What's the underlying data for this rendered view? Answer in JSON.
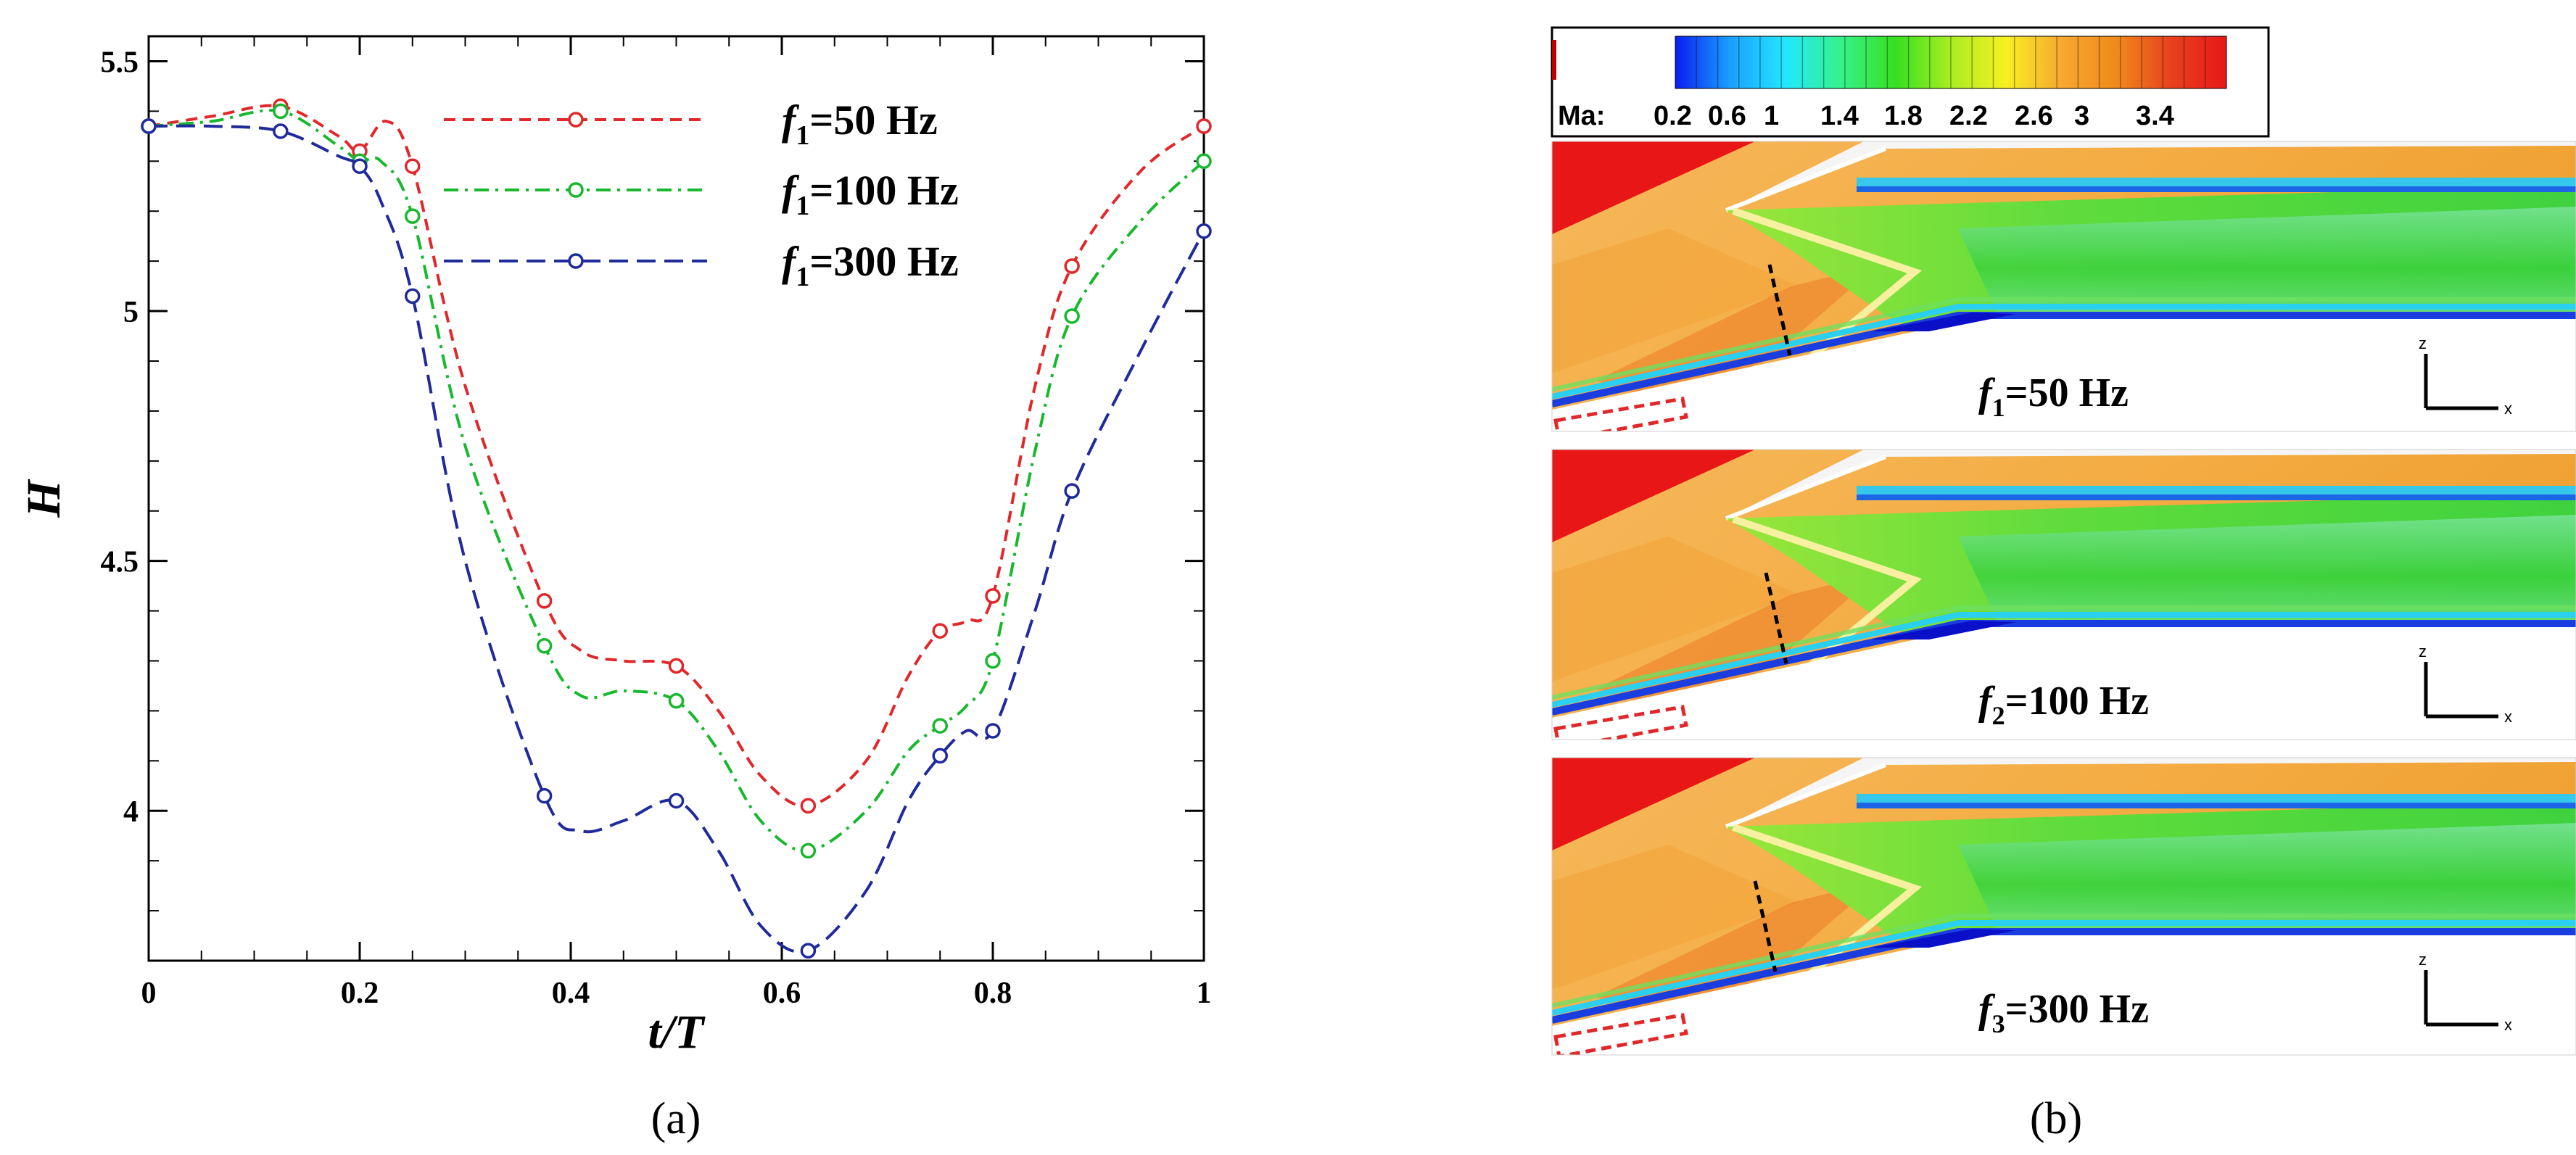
{
  "chart_data": [
    {
      "type": "line",
      "panel_label": "(a)",
      "xlabel": "t/T",
      "ylabel": "H",
      "xlim": [
        0,
        1
      ],
      "ylim": [
        3.7,
        5.55
      ],
      "xticks": [
        0,
        0.2,
        0.4,
        0.6,
        0.8,
        1
      ],
      "xtick_labels": [
        "0",
        "0.2",
        "0.4",
        "0.6",
        "0.8",
        "1"
      ],
      "yticks": [
        4,
        4.5,
        5,
        5.5
      ],
      "ytick_labels": [
        "4",
        "4.5",
        "5",
        "5.5"
      ],
      "grid": false,
      "legend_position": "top-right",
      "series": [
        {
          "name": "f1=50 Hz",
          "legend_main": "f",
          "legend_sub": "1",
          "legend_rest": "=50 Hz",
          "color": "#e0282b",
          "dash": "dashed",
          "markers": [
            [
              0,
              5.37
            ],
            [
              0.125,
              5.41
            ],
            [
              0.2,
              5.32
            ],
            [
              0.25,
              5.29
            ],
            [
              0.375,
              4.42
            ],
            [
              0.5,
              4.29
            ],
            [
              0.625,
              4.01
            ],
            [
              0.75,
              4.36
            ],
            [
              0.8,
              4.43
            ],
            [
              0.875,
              5.09
            ],
            [
              1,
              5.37
            ]
          ],
          "curve": [
            [
              0,
              5.37
            ],
            [
              0.06,
              5.39
            ],
            [
              0.125,
              5.41
            ],
            [
              0.18,
              5.35
            ],
            [
              0.2,
              5.32
            ],
            [
              0.225,
              5.38
            ],
            [
              0.25,
              5.29
            ],
            [
              0.3,
              4.85
            ],
            [
              0.375,
              4.42
            ],
            [
              0.41,
              4.32
            ],
            [
              0.45,
              4.3
            ],
            [
              0.5,
              4.29
            ],
            [
              0.54,
              4.2
            ],
            [
              0.58,
              4.07
            ],
            [
              0.625,
              4.01
            ],
            [
              0.68,
              4.1
            ],
            [
              0.72,
              4.27
            ],
            [
              0.75,
              4.36
            ],
            [
              0.775,
              4.38
            ],
            [
              0.8,
              4.43
            ],
            [
              0.84,
              4.85
            ],
            [
              0.875,
              5.09
            ],
            [
              0.94,
              5.28
            ],
            [
              1,
              5.37
            ]
          ]
        },
        {
          "name": "f1=100 Hz",
          "legend_main": "f",
          "legend_sub": "1",
          "legend_rest": "=100 Hz",
          "color": "#18b82e",
          "dash": "dashdot",
          "markers": [
            [
              0,
              5.37
            ],
            [
              0.125,
              5.4
            ],
            [
              0.2,
              5.3
            ],
            [
              0.25,
              5.19
            ],
            [
              0.375,
              4.33
            ],
            [
              0.5,
              4.22
            ],
            [
              0.625,
              3.92
            ],
            [
              0.75,
              4.17
            ],
            [
              0.8,
              4.3
            ],
            [
              0.875,
              4.99
            ],
            [
              1,
              5.3
            ]
          ],
          "curve": [
            [
              0,
              5.37
            ],
            [
              0.06,
              5.38
            ],
            [
              0.125,
              5.4
            ],
            [
              0.18,
              5.33
            ],
            [
              0.2,
              5.3
            ],
            [
              0.22,
              5.3
            ],
            [
              0.25,
              5.19
            ],
            [
              0.3,
              4.73
            ],
            [
              0.375,
              4.33
            ],
            [
              0.41,
              4.23
            ],
            [
              0.45,
              4.24
            ],
            [
              0.5,
              4.22
            ],
            [
              0.54,
              4.12
            ],
            [
              0.58,
              3.98
            ],
            [
              0.625,
              3.92
            ],
            [
              0.68,
              4.0
            ],
            [
              0.72,
              4.12
            ],
            [
              0.75,
              4.17
            ],
            [
              0.775,
              4.21
            ],
            [
              0.8,
              4.3
            ],
            [
              0.84,
              4.72
            ],
            [
              0.875,
              4.99
            ],
            [
              0.94,
              5.18
            ],
            [
              1,
              5.3
            ]
          ]
        },
        {
          "name": "f1=300 Hz",
          "legend_main": "f",
          "legend_sub": "1",
          "legend_rest": "=300 Hz",
          "color": "#1f2a9b",
          "dash": "longdash",
          "markers": [
            [
              0,
              5.37
            ],
            [
              0.125,
              5.36
            ],
            [
              0.2,
              5.29
            ],
            [
              0.25,
              5.03
            ],
            [
              0.375,
              4.03
            ],
            [
              0.5,
              4.02
            ],
            [
              0.625,
              3.72
            ],
            [
              0.75,
              4.11
            ],
            [
              0.8,
              4.16
            ],
            [
              0.875,
              4.64
            ],
            [
              1,
              5.16
            ]
          ],
          "curve": [
            [
              0,
              5.37
            ],
            [
              0.06,
              5.37
            ],
            [
              0.125,
              5.36
            ],
            [
              0.18,
              5.31
            ],
            [
              0.2,
              5.29
            ],
            [
              0.22,
              5.22
            ],
            [
              0.25,
              5.03
            ],
            [
              0.3,
              4.5
            ],
            [
              0.375,
              4.03
            ],
            [
              0.41,
              3.96
            ],
            [
              0.45,
              3.98
            ],
            [
              0.5,
              4.02
            ],
            [
              0.54,
              3.92
            ],
            [
              0.58,
              3.77
            ],
            [
              0.625,
              3.72
            ],
            [
              0.68,
              3.84
            ],
            [
              0.72,
              4.02
            ],
            [
              0.75,
              4.11
            ],
            [
              0.775,
              4.16
            ],
            [
              0.8,
              4.16
            ],
            [
              0.84,
              4.4
            ],
            [
              0.875,
              4.64
            ],
            [
              0.94,
              4.92
            ],
            [
              1,
              5.16
            ]
          ]
        }
      ]
    },
    {
      "type": "heatmap",
      "panel_label": "(b)",
      "colorbar": {
        "label": "Ma:",
        "ticks": [
          "0.2",
          "0.6",
          "1",
          "1.4",
          "1.8",
          "2.2",
          "2.6",
          "3",
          "3.4"
        ],
        "colors": [
          "#0a1ef0",
          "#1aa0ff",
          "#22e8ff",
          "#35f28a",
          "#36e020",
          "#a8ee22",
          "#f8f020",
          "#f7a830",
          "#f08a1a",
          "#e8401e",
          "#e81818"
        ]
      },
      "panels": [
        {
          "label_main": "f",
          "label_sub": "1",
          "label_rest": "=50 Hz",
          "axis_z": "z",
          "axis_x": "x"
        },
        {
          "label_main": "f",
          "label_sub": "2",
          "label_rest": "=100 Hz",
          "axis_z": "z",
          "axis_x": "x"
        },
        {
          "label_main": "f",
          "label_sub": "3",
          "label_rest": "=300 Hz",
          "axis_z": "z",
          "axis_x": "x"
        }
      ]
    }
  ]
}
